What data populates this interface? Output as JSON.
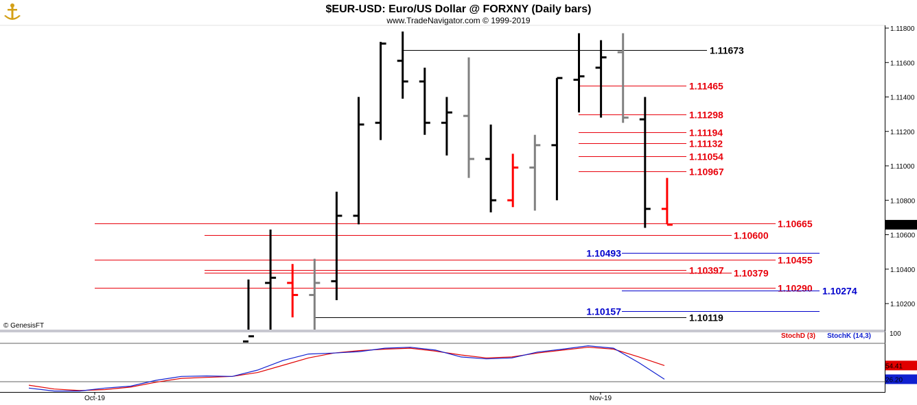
{
  "header": {
    "title": "$EUR-USD:  Euro/US Dollar @ FORXNY  (Daily bars)",
    "subtitle": "www.TradeNavigator.com © 1999-2019",
    "logo_icon": "golden-anchor-logo-icon"
  },
  "watermark": "© GenesisFT",
  "colors": {
    "bar_black": "#000000",
    "bar_gray": "#808080",
    "bar_red": "#ff0000",
    "level_red": "#e8000b",
    "level_blue": "#0000cc",
    "level_black": "#000000",
    "stoch_d": "#e00000",
    "stoch_k": "#1020d0",
    "last_price_bg": "#000000",
    "stoch_d_badge": "#e00000",
    "stoch_k_badge": "#1020d0"
  },
  "chart_data": [
    {
      "type": "ohlc",
      "title": "$EUR-USD:  Euro/US Dollar @ FORXNY  (Daily bars)",
      "y_axis": {
        "ticks": [
          "1.11800",
          "1.11600",
          "1.11400",
          "1.11200",
          "1.11000",
          "1.10800",
          "1.10600",
          "1.10400",
          "1.10200"
        ],
        "tick_values": [
          1.118,
          1.116,
          1.114,
          1.112,
          1.11,
          1.108,
          1.106,
          1.104,
          1.102
        ],
        "ylim": [
          1.1003,
          1.1181
        ]
      },
      "x_axis": {
        "labels": [
          {
            "text": "Oct-19",
            "bar_index": 0
          },
          {
            "text": "Nov-19",
            "bar_index": 23
          }
        ]
      },
      "last_price": "1.10658",
      "bars": [
        {
          "i": 0,
          "open": 1.0998,
          "high": 1.1034,
          "low": 1.0995,
          "close": 1.1001,
          "color": "black"
        },
        {
          "i": 1,
          "open": 1.1032,
          "high": 1.1063,
          "low": 1.1,
          "close": 1.1035,
          "color": "black"
        },
        {
          "i": 2,
          "open": 1.1032,
          "high": 1.1043,
          "low": 1.1012,
          "close": 1.1025,
          "color": "red"
        },
        {
          "i": 3,
          "open": 1.1025,
          "high": 1.1046,
          "low": 1.1003,
          "close": 1.1032,
          "color": "gray"
        },
        {
          "i": 4,
          "open": 1.1033,
          "high": 1.1085,
          "low": 1.1022,
          "close": 1.1071,
          "color": "black"
        },
        {
          "i": 5,
          "open": 1.1071,
          "high": 1.114,
          "low": 1.1066,
          "close": 1.1124,
          "color": "black"
        },
        {
          "i": 6,
          "open": 1.1125,
          "high": 1.1172,
          "low": 1.1115,
          "close": 1.1171,
          "color": "black"
        },
        {
          "i": 7,
          "open": 1.1161,
          "high": 1.1178,
          "low": 1.1139,
          "close": 1.1149,
          "color": "black"
        },
        {
          "i": 8,
          "open": 1.1149,
          "high": 1.1157,
          "low": 1.1118,
          "close": 1.1125,
          "color": "black"
        },
        {
          "i": 9,
          "open": 1.1125,
          "high": 1.114,
          "low": 1.1106,
          "close": 1.1131,
          "color": "black"
        },
        {
          "i": 10,
          "open": 1.1129,
          "high": 1.1163,
          "low": 1.1093,
          "close": 1.1104,
          "color": "gray"
        },
        {
          "i": 11,
          "open": 1.1104,
          "high": 1.1124,
          "low": 1.1073,
          "close": 1.108,
          "color": "black"
        },
        {
          "i": 12,
          "open": 1.108,
          "high": 1.1107,
          "low": 1.1076,
          "close": 1.1099,
          "color": "red"
        },
        {
          "i": 13,
          "open": 1.1099,
          "high": 1.1118,
          "low": 1.1074,
          "close": 1.1112,
          "color": "gray"
        },
        {
          "i": 14,
          "open": 1.1112,
          "high": 1.1151,
          "low": 1.108,
          "close": 1.1151,
          "color": "black"
        },
        {
          "i": 15,
          "open": 1.115,
          "high": 1.1177,
          "low": 1.1131,
          "close": 1.1152,
          "color": "black"
        },
        {
          "i": 16,
          "open": 1.1157,
          "high": 1.1173,
          "low": 1.1128,
          "close": 1.1163,
          "color": "black"
        },
        {
          "i": 17,
          "open": 1.1166,
          "high": 1.1177,
          "low": 1.1125,
          "close": 1.1128,
          "color": "gray"
        },
        {
          "i": 18,
          "open": 1.1127,
          "high": 1.114,
          "low": 1.1064,
          "close": 1.1075,
          "color": "black"
        },
        {
          "i": 19,
          "open": 1.1075,
          "high": 1.1093,
          "low": 1.1066,
          "close": 1.10658,
          "color": "red"
        }
      ],
      "levels": [
        {
          "value": 1.11673,
          "label": "1.11673",
          "color": "black",
          "from_bar": 7,
          "label_side": "right",
          "label_pos": "end"
        },
        {
          "value": 1.11465,
          "label": "1.11465",
          "color": "red",
          "from_bar": 16,
          "label_pos": "end"
        },
        {
          "value": 1.11298,
          "label": "1.11298",
          "color": "red",
          "from_bar": 16,
          "label_pos": "end"
        },
        {
          "value": 1.11194,
          "label": "1.11194",
          "color": "red",
          "from_bar": 16,
          "label_pos": "end"
        },
        {
          "value": 1.11132,
          "label": "1.11132",
          "color": "red",
          "from_bar": 16,
          "label_pos": "end"
        },
        {
          "value": 1.11054,
          "label": "1.11054",
          "color": "red",
          "from_bar": 16,
          "label_pos": "end"
        },
        {
          "value": 1.10967,
          "label": "1.10967",
          "color": "red",
          "from_bar": 16,
          "label_pos": "end"
        },
        {
          "value": 1.10665,
          "label": "1.10665",
          "color": "red",
          "from_bar": -7,
          "label_pos": "far"
        },
        {
          "value": 1.106,
          "label": "1.10600",
          "color": "red",
          "from_bar": -2,
          "label_pos": "mid"
        },
        {
          "value": 1.10493,
          "label": "1.10493",
          "color": "blue",
          "from_bar": 17,
          "label_pos": "before"
        },
        {
          "value": 1.10455,
          "label": "1.10455",
          "color": "red",
          "from_bar": -7,
          "label_pos": "far"
        },
        {
          "value": 1.10397,
          "label": "1.10397",
          "color": "red",
          "from_bar": -2,
          "label_pos": "end"
        },
        {
          "value": 1.10379,
          "label": "1.10379",
          "color": "red",
          "from_bar": -2,
          "label_pos": "mid"
        },
        {
          "value": 1.1029,
          "label": "1.10290",
          "color": "red",
          "from_bar": -7,
          "label_pos": "far"
        },
        {
          "value": 1.10274,
          "label": "1.10274",
          "color": "blue",
          "from_bar": 17,
          "label_pos": "farblue"
        },
        {
          "value": 1.10157,
          "label": "1.10157",
          "color": "blue",
          "from_bar": 17,
          "label_pos": "before"
        },
        {
          "value": 1.10119,
          "label": "1.10119",
          "color": "black",
          "from_bar": 3,
          "label_pos": "end"
        }
      ]
    },
    {
      "type": "line",
      "title": "Stochastic",
      "ylim": [
        0,
        100
      ],
      "y_ticks": [
        "100"
      ],
      "series": [
        {
          "name": "StochD (3)",
          "color": "red",
          "last": "54.41",
          "values": [
            14,
            6,
            3,
            5,
            10,
            20,
            28,
            30,
            32,
            40,
            55,
            70,
            80,
            85,
            88,
            90,
            84,
            76,
            70,
            72,
            80,
            86,
            92,
            88,
            72,
            54.41
          ]
        },
        {
          "name": "StochK (14,3)",
          "color": "blue",
          "last": "26.20",
          "values": [
            8,
            2,
            2,
            8,
            12,
            24,
            32,
            33,
            32,
            45,
            65,
            78,
            80,
            83,
            90,
            92,
            86,
            72,
            68,
            70,
            82,
            88,
            95,
            90,
            60,
            26.2
          ]
        }
      ]
    }
  ]
}
